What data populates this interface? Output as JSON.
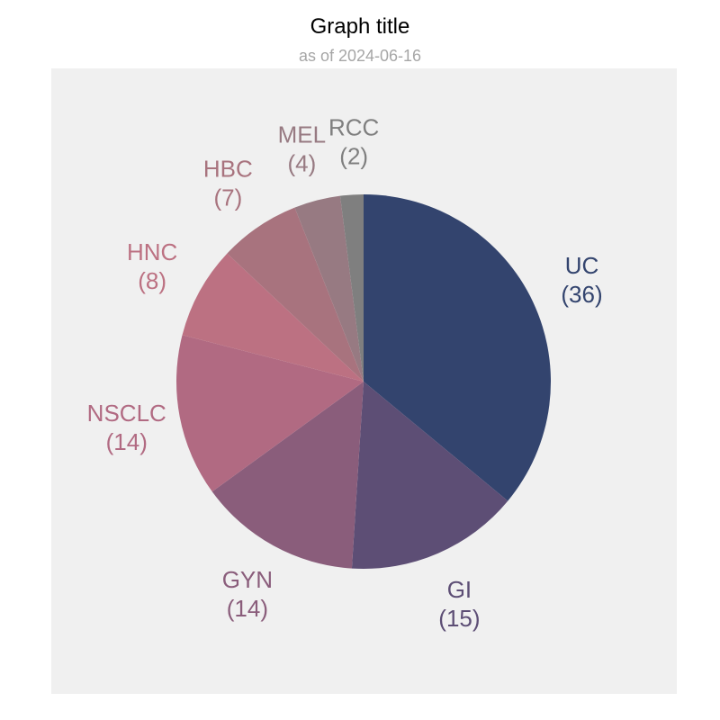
{
  "chart_data": {
    "type": "pie",
    "title": "Graph title",
    "subtitle": "as of 2024-06-16",
    "start_angle_deg": 0,
    "direction": "clockwise",
    "slices": [
      {
        "label": "UC",
        "value": 36,
        "value_text": "(36)",
        "color": "#33446e"
      },
      {
        "label": "GI",
        "value": 15,
        "value_text": "(15)",
        "color": "#5d4e75"
      },
      {
        "label": "GYN",
        "value": 14,
        "value_text": "(14)",
        "color": "#8a5d7b"
      },
      {
        "label": "NSCLC",
        "value": 14,
        "value_text": "(14)",
        "color": "#b16a82"
      },
      {
        "label": "HNC",
        "value": 8,
        "value_text": "(8)",
        "color": "#bc7182"
      },
      {
        "label": "HBC",
        "value": 7,
        "value_text": "(7)",
        "color": "#a8737e"
      },
      {
        "label": "MEL",
        "value": 4,
        "value_text": "(4)",
        "color": "#977a82"
      },
      {
        "label": "RCC",
        "value": 2,
        "value_text": "(2)",
        "color": "#7f7f7f"
      }
    ]
  }
}
